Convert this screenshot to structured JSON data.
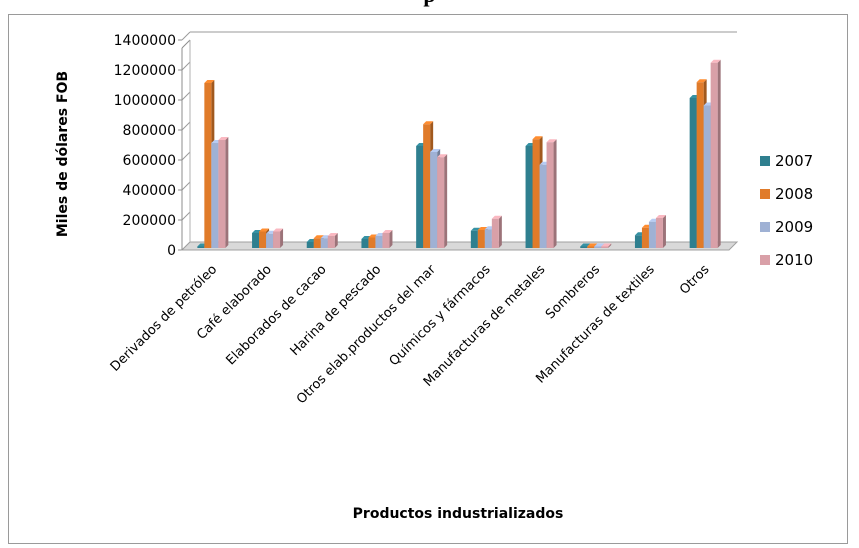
{
  "caption": "p",
  "chart_data": {
    "type": "bar",
    "title": "",
    "xlabel": "Productos industrializados",
    "ylabel": "Miles de dólares FOB",
    "ylim": [
      0,
      1400000
    ],
    "yticks": [
      0,
      200000,
      400000,
      600000,
      800000,
      1000000,
      1200000,
      1400000
    ],
    "grid": true,
    "legend_position": "right",
    "categories": [
      "Derivados de petróleo",
      "Café elaborado",
      "Elaborados de cacao",
      "Harina de pescado",
      "Otros elab.productos del mar",
      "Químicos y fármacos",
      "Manufacturas de metales",
      "Sombreros",
      "Manufacturas de textiles",
      "Otros"
    ],
    "series": [
      {
        "name": "2007",
        "color": "#2f7f8f",
        "values": [
          10000,
          100000,
          40000,
          60000,
          680000,
          115000,
          680000,
          10000,
          85000,
          1000000
        ]
      },
      {
        "name": "2008",
        "color": "#e07b2a",
        "values": [
          1100000,
          110000,
          65000,
          70000,
          825000,
          120000,
          725000,
          10000,
          135000,
          1105000
        ]
      },
      {
        "name": "2009",
        "color": "#9fb1d4",
        "values": [
          700000,
          95000,
          65000,
          80000,
          640000,
          125000,
          555000,
          10000,
          175000,
          950000
        ]
      },
      {
        "name": "2010",
        "color": "#d9a0a8",
        "values": [
          720000,
          110000,
          80000,
          100000,
          605000,
          195000,
          705000,
          10000,
          200000,
          1235000
        ]
      }
    ]
  }
}
